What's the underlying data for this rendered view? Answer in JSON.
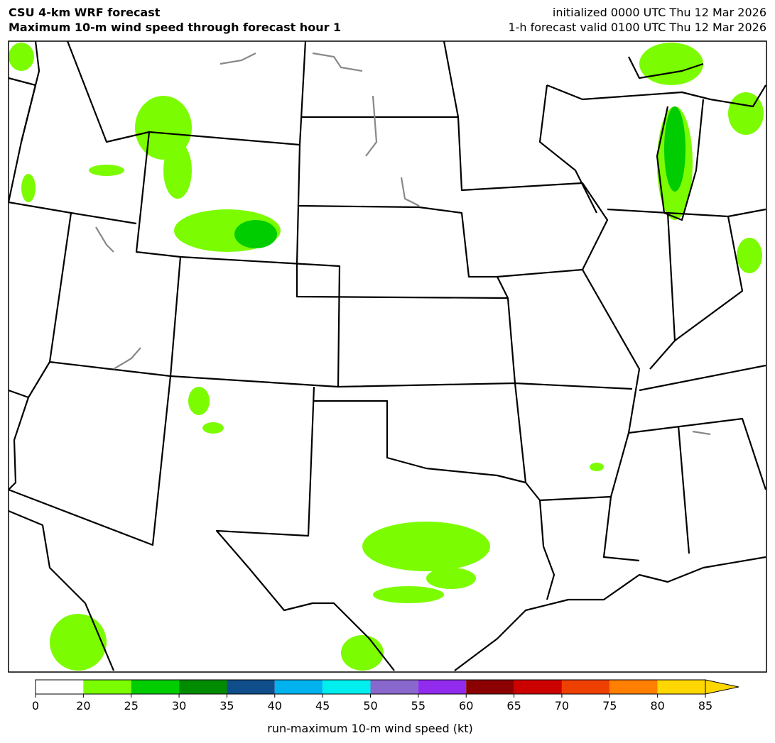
{
  "header": {
    "title_left": [
      "CSU 4-km WRF forecast",
      "Maximum 10-m wind speed through forecast hour 1"
    ],
    "title_right": [
      "initialized 0000 UTC Thu 12 Mar 2026",
      "1-h forecast valid 0100 UTC Thu 12 Mar 2026"
    ]
  },
  "colorbar": {
    "label": "run-maximum 10-m wind speed (kt)",
    "ticks": [
      0,
      20,
      25,
      30,
      35,
      40,
      45,
      50,
      55,
      60,
      65,
      70,
      75,
      80,
      85
    ],
    "colors": [
      "#ffffff",
      "#7cfc00",
      "#00cd00",
      "#008b00",
      "#104e8b",
      "#00b2ee",
      "#00eeee",
      "#8968cd",
      "#912cee",
      "#8b0000",
      "#cd0000",
      "#ee4000",
      "#ff7f00",
      "#ffd700"
    ]
  }
}
